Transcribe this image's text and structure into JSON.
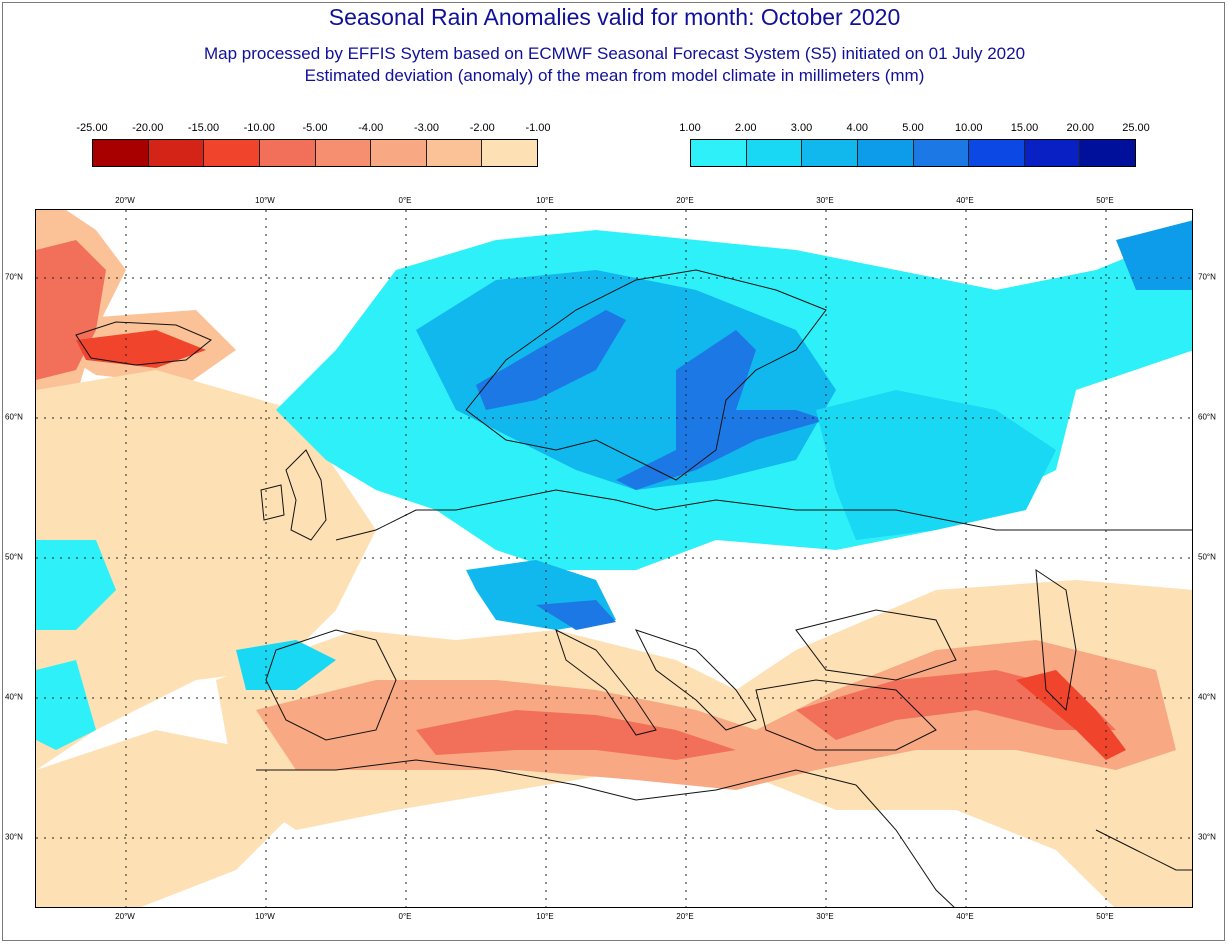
{
  "title": "Seasonal Rain Anomalies valid for month: October 2020",
  "subtitle_line1": "Map processed by EFFIS Sytem based on ECMWF Seasonal Forecast System (S5) initiated on 01 July 2020",
  "subtitle_line2": "Estimated deviation (anomaly) of the mean from model climate in millimeters (mm)",
  "legend_negative": {
    "labels": [
      "-25.00",
      "-20.00",
      "-15.00",
      "-10.00",
      "-5.00",
      "-4.00",
      "-3.00",
      "-2.00",
      "-1.00"
    ],
    "colors": [
      "#a80000",
      "#d42418",
      "#f0442c",
      "#f2705a",
      "#f68e70",
      "#f8a882",
      "#fbc298",
      "#fde0b4"
    ]
  },
  "legend_positive": {
    "labels": [
      "1.00",
      "2.00",
      "3.00",
      "4.00",
      "5.00",
      "10.00",
      "15.00",
      "20.00",
      "25.00"
    ],
    "colors": [
      "#2ef0f8",
      "#18d8f4",
      "#10b8ee",
      "#0c9cea",
      "#1c78e4",
      "#0c48e4",
      "#0820c4",
      "#00109a"
    ]
  },
  "lon_ticks": [
    "20°W",
    "10°W",
    "0°E",
    "10°E",
    "20°E",
    "30°E",
    "40°E",
    "50°E"
  ],
  "lat_ticks": [
    "70°N",
    "60°N",
    "50°N",
    "40°N",
    "30°N"
  ],
  "colors": {
    "title": "#10109a",
    "gridline": "#222222",
    "coastline": "#111111"
  }
}
